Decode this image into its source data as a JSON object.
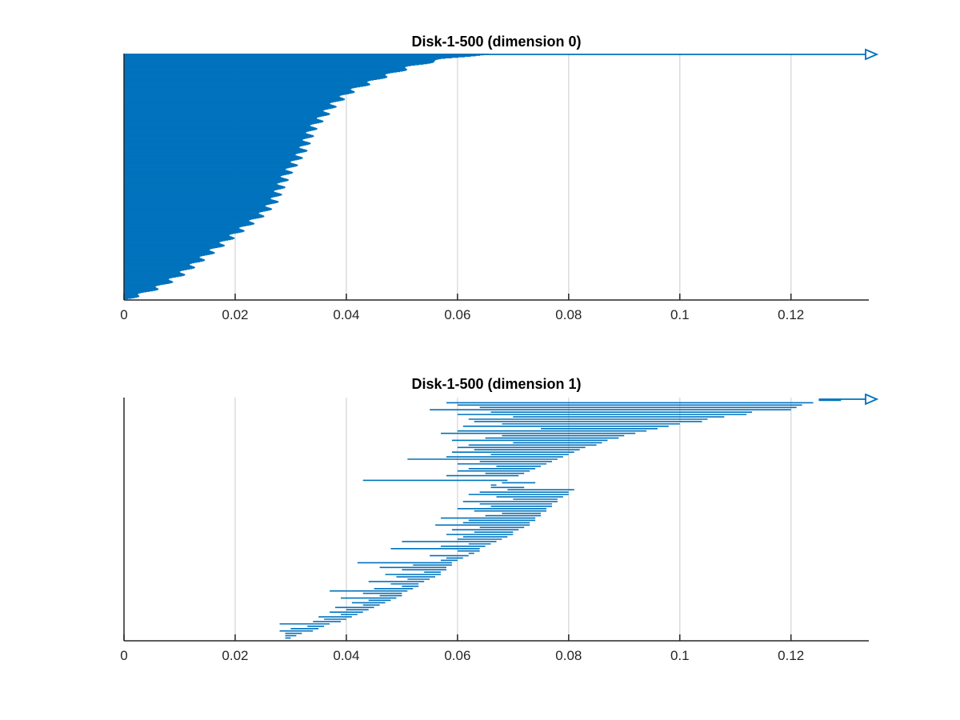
{
  "chart_data": [
    {
      "type": "barcode",
      "title": "Disk-1-500 (dimension 0)",
      "xlabel": "",
      "ylabel": "",
      "xlim": [
        0,
        0.134
      ],
      "xticks": [
        0,
        0.02,
        0.04,
        0.06,
        0.08,
        0.1,
        0.12
      ],
      "xtick_labels": [
        "0",
        "0.02",
        "0.04",
        "0.06",
        "0.08",
        "0.1",
        "0.12"
      ],
      "grid": "vertical",
      "color": "#0072bd",
      "interval_count": 500,
      "infinite_intervals": [
        {
          "birth": 0
        }
      ],
      "death_profile_from_top": [
        [
          0.0,
          0.066
        ],
        [
          0.02,
          0.058
        ],
        [
          0.05,
          0.052
        ],
        [
          0.1,
          0.046
        ],
        [
          0.15,
          0.041
        ],
        [
          0.2,
          0.038
        ],
        [
          0.3,
          0.034
        ],
        [
          0.4,
          0.032
        ],
        [
          0.5,
          0.029
        ],
        [
          0.6,
          0.027
        ],
        [
          0.65,
          0.025
        ],
        [
          0.7,
          0.022
        ],
        [
          0.75,
          0.019
        ],
        [
          0.8,
          0.016
        ],
        [
          0.85,
          0.013
        ],
        [
          0.9,
          0.01
        ],
        [
          0.94,
          0.007
        ],
        [
          0.97,
          0.004
        ],
        [
          1.0,
          0.0
        ]
      ]
    },
    {
      "type": "barcode",
      "title": "Disk-1-500 (dimension 1)",
      "xlabel": "",
      "ylabel": "",
      "xlim": [
        0,
        0.134
      ],
      "xticks": [
        0,
        0.02,
        0.04,
        0.06,
        0.08,
        0.1,
        0.12
      ],
      "xtick_labels": [
        "0",
        "0.02",
        "0.04",
        "0.06",
        "0.08",
        "0.1",
        "0.12"
      ],
      "grid": "vertical",
      "color": "#0072bd",
      "interval_count": 150,
      "infinite_intervals": [
        {
          "birth": 0.125
        }
      ],
      "intervals_from_top": [
        [
          0.125,
          0.129
        ],
        [
          0.058,
          0.124
        ],
        [
          0.06,
          0.122
        ],
        [
          0.064,
          0.121
        ],
        [
          0.055,
          0.12
        ],
        [
          0.066,
          0.113
        ],
        [
          0.06,
          0.112
        ],
        [
          0.07,
          0.108
        ],
        [
          0.062,
          0.105
        ],
        [
          0.063,
          0.104
        ],
        [
          0.068,
          0.1
        ],
        [
          0.061,
          0.098
        ],
        [
          0.075,
          0.096
        ],
        [
          0.06,
          0.094
        ],
        [
          0.057,
          0.092
        ],
        [
          0.068,
          0.09
        ],
        [
          0.065,
          0.089
        ],
        [
          0.059,
          0.087
        ],
        [
          0.07,
          0.086
        ],
        [
          0.062,
          0.085
        ],
        [
          0.06,
          0.083
        ],
        [
          0.063,
          0.082
        ],
        [
          0.059,
          0.081
        ],
        [
          0.066,
          0.08
        ],
        [
          0.058,
          0.079
        ],
        [
          0.051,
          0.078
        ],
        [
          0.064,
          0.077
        ],
        [
          0.06,
          0.076
        ],
        [
          0.067,
          0.075
        ],
        [
          0.062,
          0.074
        ],
        [
          0.06,
          0.073
        ],
        [
          0.065,
          0.072
        ],
        [
          0.058,
          0.071
        ],
        [
          0.07,
          0.07
        ],
        [
          0.043,
          0.069
        ],
        [
          0.074,
          0.068
        ],
        [
          0.066,
          0.067
        ],
        [
          0.072,
          0.066
        ],
        [
          0.069,
          0.081
        ],
        [
          0.064,
          0.08
        ],
        [
          0.062,
          0.08
        ],
        [
          0.067,
          0.079
        ],
        [
          0.07,
          0.078
        ],
        [
          0.061,
          0.078
        ],
        [
          0.064,
          0.077
        ],
        [
          0.066,
          0.077
        ],
        [
          0.06,
          0.076
        ],
        [
          0.063,
          0.076
        ],
        [
          0.068,
          0.075
        ],
        [
          0.065,
          0.075
        ],
        [
          0.057,
          0.074
        ],
        [
          0.062,
          0.074
        ],
        [
          0.061,
          0.073
        ],
        [
          0.056,
          0.073
        ],
        [
          0.064,
          0.072
        ],
        [
          0.059,
          0.071
        ],
        [
          0.063,
          0.07
        ],
        [
          0.058,
          0.07
        ],
        [
          0.061,
          0.069
        ],
        [
          0.06,
          0.068
        ],
        [
          0.05,
          0.067
        ],
        [
          0.062,
          0.066
        ],
        [
          0.057,
          0.065
        ],
        [
          0.048,
          0.064
        ],
        [
          0.06,
          0.064
        ],
        [
          0.062,
          0.063
        ],
        [
          0.055,
          0.062
        ],
        [
          0.058,
          0.061
        ],
        [
          0.057,
          0.06
        ],
        [
          0.042,
          0.059
        ],
        [
          0.052,
          0.059
        ],
        [
          0.046,
          0.058
        ],
        [
          0.05,
          0.058
        ],
        [
          0.054,
          0.057
        ],
        [
          0.047,
          0.057
        ],
        [
          0.049,
          0.056
        ],
        [
          0.051,
          0.055
        ],
        [
          0.044,
          0.054
        ],
        [
          0.048,
          0.053
        ],
        [
          0.05,
          0.053
        ],
        [
          0.045,
          0.052
        ],
        [
          0.037,
          0.051
        ],
        [
          0.043,
          0.05
        ],
        [
          0.046,
          0.05
        ],
        [
          0.039,
          0.049
        ],
        [
          0.044,
          0.048
        ],
        [
          0.041,
          0.047
        ],
        [
          0.043,
          0.046
        ],
        [
          0.038,
          0.045
        ],
        [
          0.04,
          0.044
        ],
        [
          0.037,
          0.043
        ],
        [
          0.039,
          0.042
        ],
        [
          0.035,
          0.041
        ],
        [
          0.036,
          0.04
        ],
        [
          0.034,
          0.039
        ],
        [
          0.028,
          0.037
        ],
        [
          0.033,
          0.036
        ],
        [
          0.03,
          0.035
        ],
        [
          0.028,
          0.034
        ],
        [
          0.029,
          0.032
        ],
        [
          0.029,
          0.031
        ],
        [
          0.029,
          0.03
        ]
      ]
    }
  ]
}
